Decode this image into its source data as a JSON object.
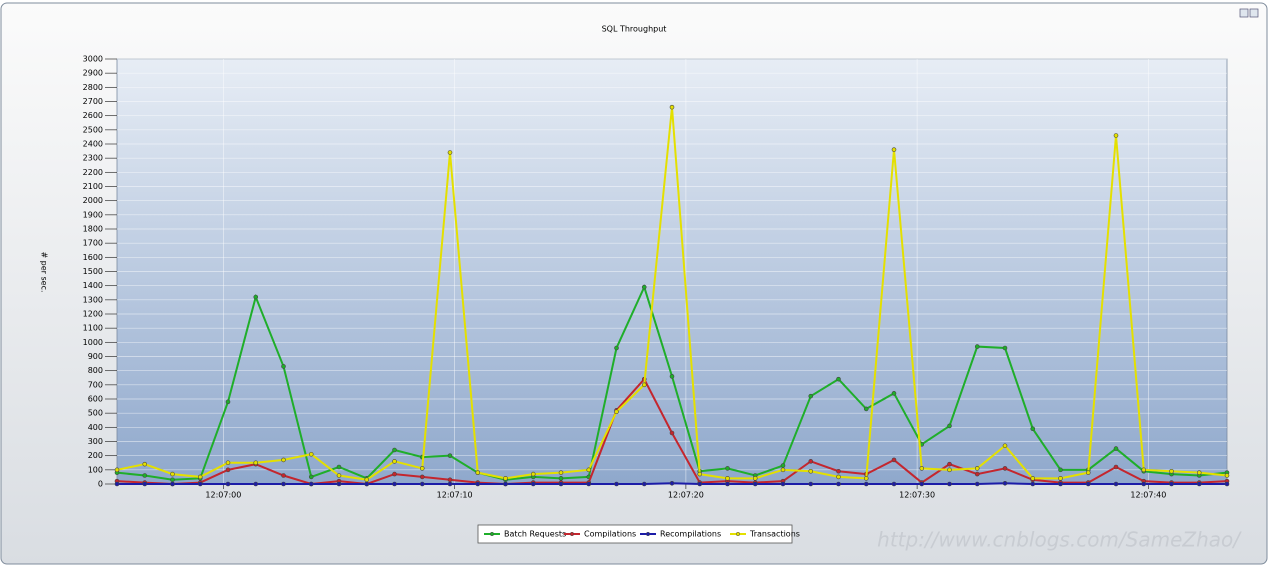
{
  "chart_data": {
    "type": "line",
    "title": "SQL Throughput",
    "y_label": "# per sec.",
    "watermark": "http://www.cnblogs.com/SameZhao/",
    "x": [
      415.4,
      416.6,
      417.8,
      419,
      420.2,
      421.4,
      422.6,
      423.8,
      425,
      426.2,
      427.4,
      428.6,
      429.8,
      431,
      432.2,
      433.4,
      434.6,
      435.8,
      437,
      438.2,
      439.4,
      440.6,
      441.8,
      443,
      444.2,
      445.4,
      446.6,
      447.8,
      449,
      450.2,
      451.4,
      452.6,
      453.8,
      455,
      456.2,
      457.4,
      458.6,
      459.8,
      461,
      462.2,
      463.4
    ],
    "xlim": [
      415.4,
      463.4
    ],
    "xticks": [
      {
        "value": 420,
        "label": "12:07:00"
      },
      {
        "value": 430,
        "label": "12:07:10"
      },
      {
        "value": 440,
        "label": "12:07:20"
      },
      {
        "value": 450,
        "label": "12:07:30"
      },
      {
        "value": 460,
        "label": "12:07:40"
      }
    ],
    "ylim": [
      0,
      3000
    ],
    "yticks": [
      0,
      100,
      200,
      300,
      400,
      500,
      600,
      700,
      800,
      900,
      1000,
      1100,
      1200,
      1300,
      1400,
      1500,
      1600,
      1700,
      1800,
      1900,
      2000,
      2100,
      2200,
      2300,
      2400,
      2500,
      2600,
      2700,
      2800,
      2900,
      3000
    ],
    "grid": true,
    "legend": "bottom",
    "series": [
      {
        "name": "Batch Requests",
        "color": "#1fae2a",
        "values": [
          80,
          60,
          30,
          40,
          580,
          1320,
          830,
          50,
          120,
          40,
          240,
          190,
          200,
          80,
          30,
          50,
          40,
          50,
          960,
          1390,
          760,
          90,
          110,
          60,
          130,
          620,
          740,
          530,
          640,
          280,
          410,
          970,
          960,
          390,
          100,
          100,
          250,
          90,
          70,
          60,
          80
        ]
      },
      {
        "name": "Compilations",
        "color": "#c4262e",
        "values": [
          20,
          10,
          0,
          10,
          100,
          140,
          60,
          0,
          20,
          0,
          70,
          50,
          30,
          10,
          0,
          10,
          10,
          10,
          520,
          740,
          360,
          10,
          20,
          10,
          20,
          160,
          90,
          70,
          170,
          10,
          140,
          70,
          110,
          30,
          10,
          10,
          120,
          20,
          10,
          10,
          20
        ]
      },
      {
        "name": "Recompilations",
        "color": "#1c1ca8",
        "values": [
          0,
          0,
          0,
          0,
          0,
          0,
          0,
          0,
          0,
          0,
          0,
          0,
          0,
          0,
          0,
          0,
          0,
          0,
          0,
          0,
          5,
          0,
          0,
          0,
          0,
          0,
          0,
          0,
          0,
          0,
          0,
          0,
          5,
          0,
          0,
          0,
          0,
          0,
          0,
          0,
          0
        ]
      },
      {
        "name": "Transactions",
        "color": "#e4e000",
        "values": [
          100,
          140,
          70,
          50,
          150,
          150,
          170,
          210,
          60,
          30,
          160,
          110,
          2340,
          80,
          40,
          70,
          80,
          100,
          510,
          700,
          2660,
          70,
          40,
          40,
          100,
          90,
          50,
          40,
          2360,
          110,
          100,
          110,
          270,
          40,
          40,
          80,
          2460,
          100,
          90,
          80,
          60
        ]
      }
    ]
  }
}
